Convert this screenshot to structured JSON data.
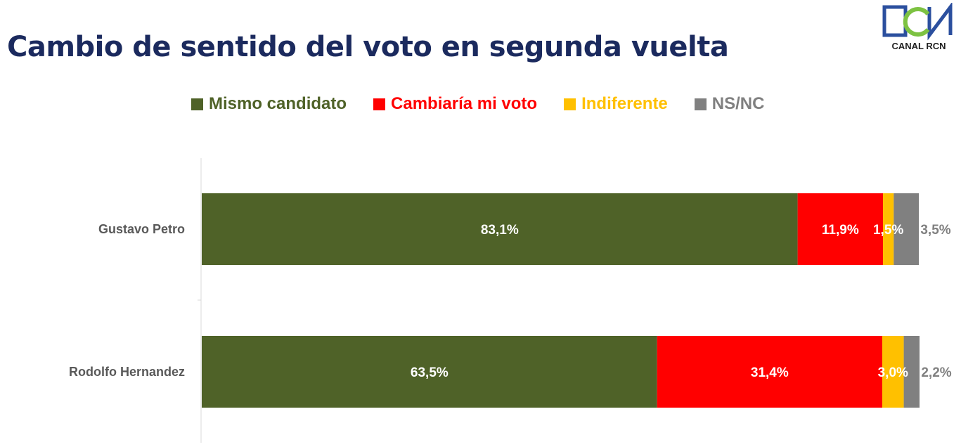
{
  "title": "Cambio de sentido del voto en segunda vuelta",
  "logo": {
    "text": "CANAL RCN",
    "letters": "RCN"
  },
  "chart_data": {
    "type": "bar",
    "orientation": "horizontal",
    "stacked": true,
    "categories": [
      "Gustavo Petro",
      "Rodolfo Hernandez"
    ],
    "series": [
      {
        "name": "Mismo candidato",
        "color": "#4f6228",
        "values": [
          83.1,
          63.5
        ],
        "labels": [
          "83,1%",
          "63,5%"
        ]
      },
      {
        "name": "Cambiaría mi voto",
        "color": "#ff0000",
        "values": [
          11.9,
          31.4
        ],
        "labels": [
          "11,9%",
          "31,4%"
        ]
      },
      {
        "name": "Indiferente",
        "color": "#ffc000",
        "values": [
          1.5,
          3.0
        ],
        "labels": [
          "1,5%",
          "3,0%"
        ]
      },
      {
        "name": "NS/NC",
        "color": "#808080",
        "values": [
          3.5,
          2.2
        ],
        "labels": [
          "3,5%",
          "2,2%"
        ]
      }
    ],
    "xlim": [
      0,
      100
    ],
    "grid": false,
    "legend_position": "top"
  }
}
